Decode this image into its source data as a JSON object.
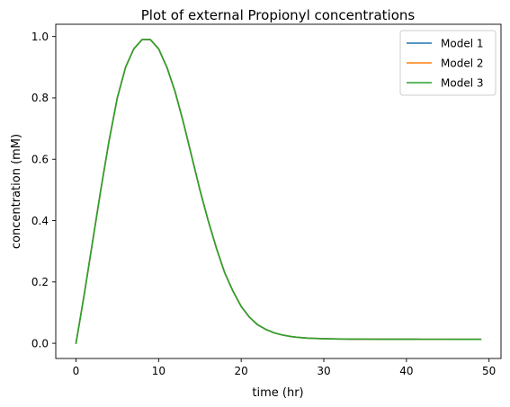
{
  "chart_data": {
    "type": "line",
    "title": "Plot of external Propionyl concentrations",
    "xlabel": "time (hr)",
    "ylabel": "concentration (mM)",
    "xlim": [
      -2.45,
      51.45
    ],
    "ylim": [
      -0.0495,
      1.04
    ],
    "xticks": [
      0,
      10,
      20,
      30,
      40,
      50
    ],
    "xtick_labels": [
      "0",
      "10",
      "20",
      "30",
      "40",
      "50"
    ],
    "yticks": [
      0.0,
      0.2,
      0.4,
      0.6,
      0.8,
      1.0
    ],
    "ytick_labels": [
      "0.0",
      "0.2",
      "0.4",
      "0.6",
      "0.8",
      "1.0"
    ],
    "grid": false,
    "legend_position": "top-right",
    "x": [
      0,
      1,
      2,
      3,
      4,
      5,
      6,
      7,
      8,
      9,
      10,
      11,
      12,
      13,
      14,
      15,
      16,
      17,
      18,
      19,
      20,
      21,
      22,
      23,
      24,
      25,
      26,
      27,
      28,
      29,
      30,
      31,
      32,
      33,
      34,
      35,
      36,
      37,
      38,
      39,
      40,
      41,
      42,
      43,
      44,
      45,
      46,
      47,
      48,
      49
    ],
    "series": [
      {
        "name": "Model 1",
        "color": "#1f77b4",
        "values": [
          0.0,
          0.16,
          0.33,
          0.5,
          0.66,
          0.8,
          0.9,
          0.96,
          0.99,
          0.99,
          0.96,
          0.9,
          0.82,
          0.72,
          0.61,
          0.5,
          0.4,
          0.31,
          0.23,
          0.17,
          0.12,
          0.085,
          0.06,
          0.045,
          0.034,
          0.027,
          0.022,
          0.019,
          0.017,
          0.016,
          0.015,
          0.0145,
          0.014,
          0.0138,
          0.0136,
          0.0135,
          0.0134,
          0.0133,
          0.0133,
          0.0132,
          0.0132,
          0.0132,
          0.0131,
          0.0131,
          0.0131,
          0.0131,
          0.013,
          0.013,
          0.013,
          0.013
        ]
      },
      {
        "name": "Model 2",
        "color": "#ff7f0e",
        "values": [
          0.0,
          0.16,
          0.33,
          0.5,
          0.66,
          0.8,
          0.9,
          0.96,
          0.99,
          0.99,
          0.96,
          0.9,
          0.82,
          0.72,
          0.61,
          0.5,
          0.4,
          0.31,
          0.23,
          0.17,
          0.12,
          0.085,
          0.06,
          0.045,
          0.034,
          0.027,
          0.022,
          0.019,
          0.017,
          0.016,
          0.015,
          0.0145,
          0.014,
          0.0138,
          0.0136,
          0.0135,
          0.0134,
          0.0133,
          0.0133,
          0.0132,
          0.0132,
          0.0132,
          0.0131,
          0.0131,
          0.0131,
          0.0131,
          0.013,
          0.013,
          0.013,
          0.013
        ]
      },
      {
        "name": "Model 3",
        "color": "#2ca02c",
        "values": [
          0.0,
          0.16,
          0.33,
          0.5,
          0.66,
          0.8,
          0.9,
          0.96,
          0.99,
          0.99,
          0.96,
          0.9,
          0.82,
          0.72,
          0.61,
          0.5,
          0.4,
          0.31,
          0.23,
          0.17,
          0.12,
          0.085,
          0.06,
          0.045,
          0.034,
          0.027,
          0.022,
          0.019,
          0.017,
          0.016,
          0.015,
          0.0145,
          0.014,
          0.0138,
          0.0136,
          0.0135,
          0.0134,
          0.0133,
          0.0133,
          0.0132,
          0.0132,
          0.0132,
          0.0131,
          0.0131,
          0.0131,
          0.0131,
          0.013,
          0.013,
          0.013,
          0.013
        ]
      }
    ]
  }
}
